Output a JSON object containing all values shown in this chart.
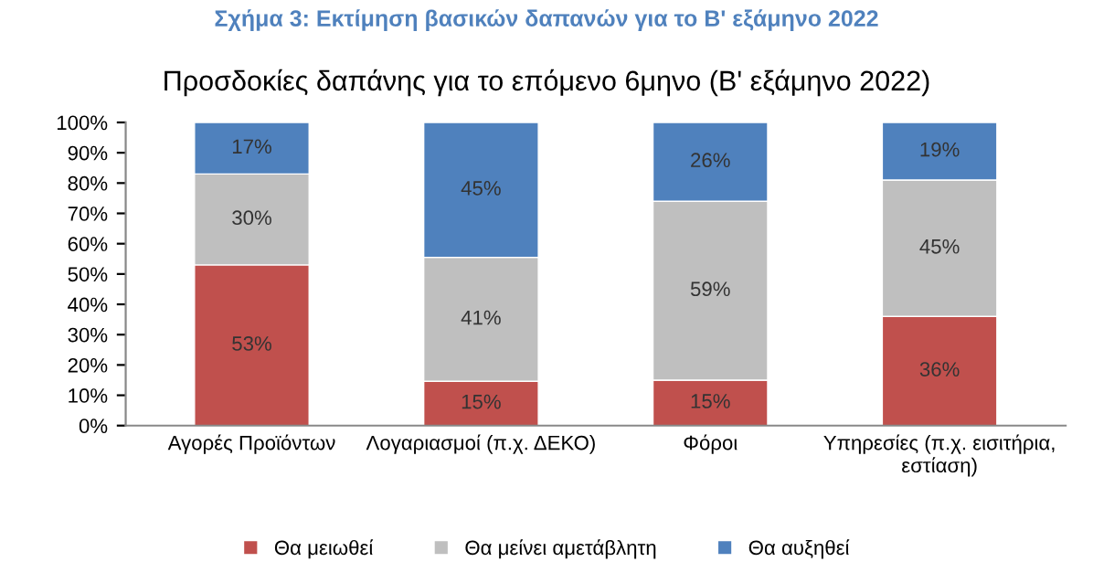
{
  "chart_data": {
    "type": "bar",
    "stacked": true,
    "title": "Σχήμα 3: Εκτίμηση βασικών δαπανών για το Β' εξάμηνο 2022",
    "subtitle": "Προσδοκίες δαπάνης για το επόμενο 6μηνο (Β' εξάμηνο 2022)",
    "categories": [
      "Αγορές Προϊόντων",
      "Λογαριασμοί (π.χ. ΔΕΚΟ)",
      "Φόροι",
      "Υπηρεσίες (π.χ. εισιτήρια,\nεστίαση)"
    ],
    "series": [
      {
        "name": "Θα μειωθεί",
        "color": "#c0504d",
        "values": [
          53,
          14.6,
          15,
          36
        ],
        "value_labels": [
          "53%",
          "15%",
          "15%",
          "36%"
        ]
      },
      {
        "name": "Θα μείνει αμετάβλητη",
        "color": "#bfbfbf",
        "values": [
          30,
          40.9,
          59,
          45
        ],
        "value_labels": [
          "30%",
          "41%",
          "59%",
          "45%"
        ]
      },
      {
        "name": "Θα αυξηθεί",
        "color": "#4f81bd",
        "values": [
          17,
          44.5,
          26,
          19
        ],
        "value_labels": [
          "17%",
          "45%",
          "26%",
          "19%"
        ]
      }
    ],
    "ylim": [
      0,
      100
    ],
    "yticks": [
      {
        "value": 0,
        "label": "0%"
      },
      {
        "value": 10,
        "label": "10%"
      },
      {
        "value": 20,
        "label": "20%"
      },
      {
        "value": 30,
        "label": "30%"
      },
      {
        "value": 40,
        "label": "40%"
      },
      {
        "value": 50,
        "label": "50%"
      },
      {
        "value": 60,
        "label": "60%"
      },
      {
        "value": 70,
        "label": "70%"
      },
      {
        "value": 80,
        "label": "80%"
      },
      {
        "value": 90,
        "label": "90%"
      },
      {
        "value": 100,
        "label": "100%"
      }
    ],
    "grid": false,
    "legend": "bottom"
  }
}
